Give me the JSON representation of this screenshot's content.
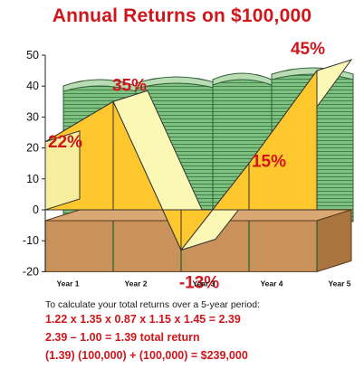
{
  "chart_data": {
    "type": "area",
    "title": "Annual Returns on $100,000",
    "categories": [
      "Year 1",
      "Year 2",
      "Year 3",
      "Year 4",
      "Year 5"
    ],
    "values": [
      22,
      35,
      -13,
      15,
      45
    ],
    "value_labels": [
      "22%",
      "35%",
      "-13%",
      "15%",
      "45%"
    ],
    "ylim": [
      -20,
      50
    ],
    "yticks": [
      -20,
      -10,
      0,
      10,
      20,
      30,
      40,
      50
    ],
    "xlabel": "",
    "ylabel": "",
    "grid": false,
    "style": "3d-ribbon over stacks of money",
    "colors": {
      "ribbon_front": "#ffc72e",
      "ribbon_top": "#fbf7b4",
      "floor": "#c8925a",
      "money": "#7ec07f",
      "label": "#d0161b"
    }
  },
  "calculation": {
    "intro": "To calculate your total returns over a 5-year period:",
    "lines": [
      "1.22 x 1.35 x 0.87 x 1.15 x 1.45 = 2.39",
      "2.39 – 1.00 = 1.39 total return",
      "(1.39) (100,000) + (100,000) = $239,000"
    ]
  }
}
